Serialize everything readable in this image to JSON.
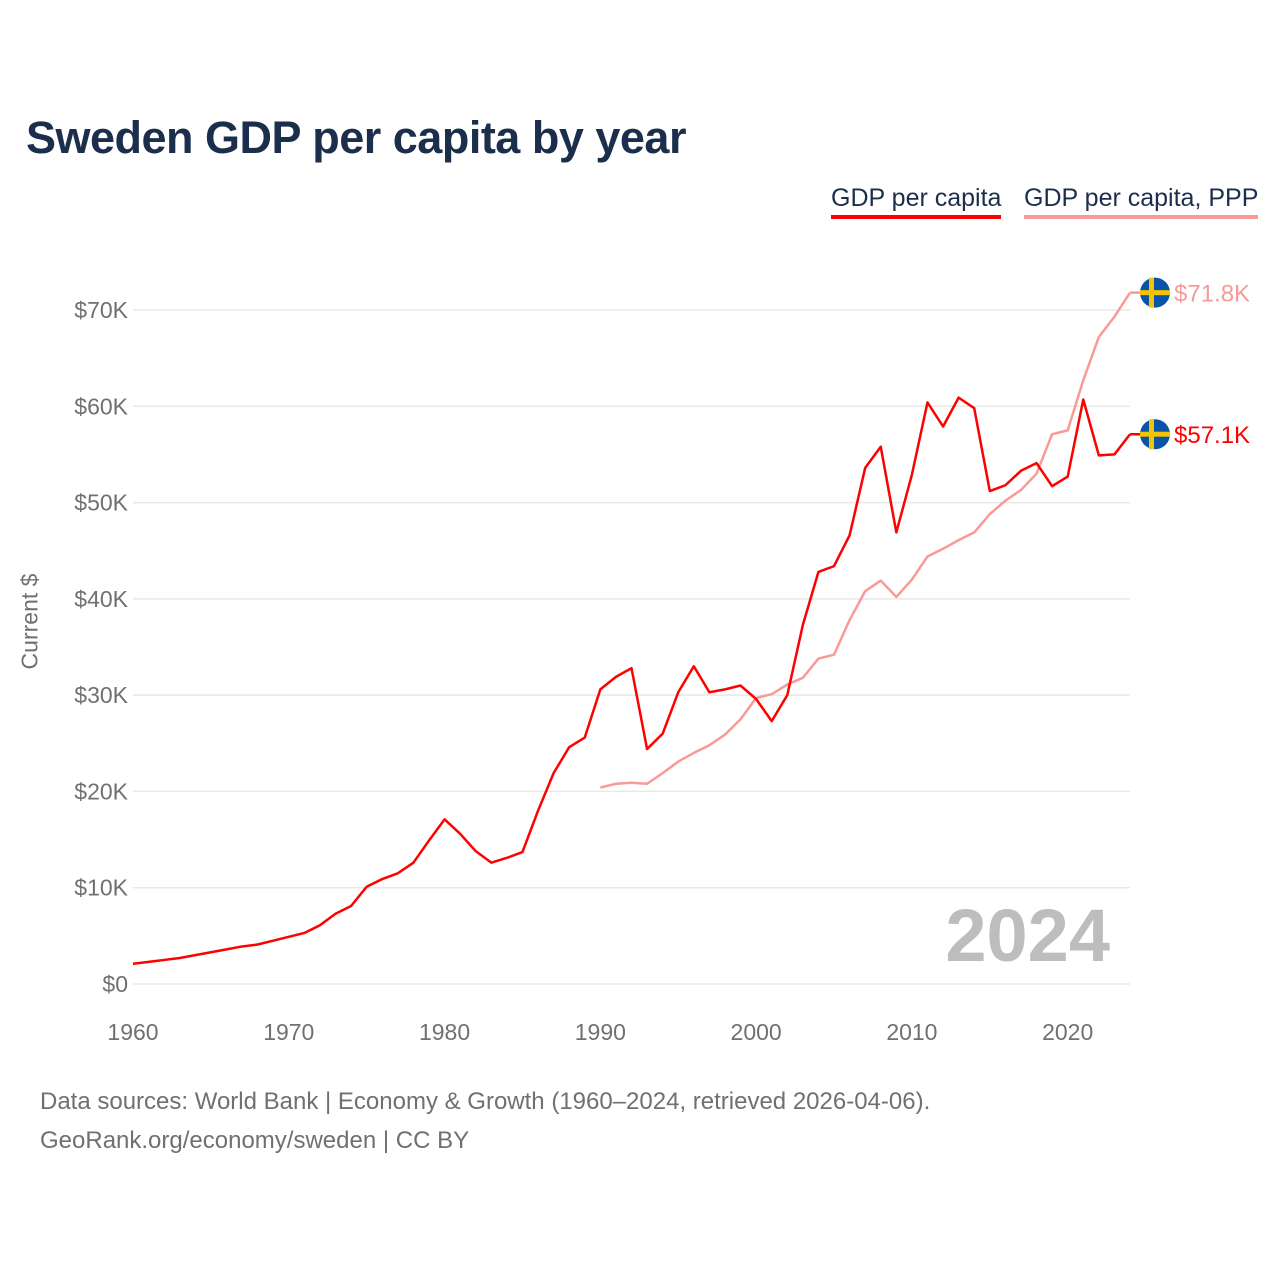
{
  "chart_data": {
    "type": "line",
    "title": "Sweden GDP per capita by year",
    "ylabel": "Current $",
    "xlabel": "",
    "xlim": [
      1960,
      2024
    ],
    "ylim": [
      0,
      70000
    ],
    "x_ticks": [
      "1960",
      "1970",
      "1980",
      "1990",
      "2000",
      "2010",
      "2020"
    ],
    "y_ticks": [
      "$0",
      "$10K",
      "$20K",
      "$30K",
      "$40K",
      "$50K",
      "$60K",
      "$70K"
    ],
    "grid": true,
    "legend_position": "top-right",
    "annotation_year": "2024",
    "series": [
      {
        "name": "GDP per capita",
        "color": "#ff0000",
        "start_year": 1960,
        "end_label": "$57.1K",
        "values": [
          2100,
          2300,
          2500,
          2700,
          3000,
          3300,
          3600,
          3900,
          4100,
          4500,
          4900,
          5300,
          6100,
          7300,
          8100,
          10100,
          10900,
          11500,
          12600,
          14900,
          17100,
          15600,
          13800,
          12600,
          13100,
          13700,
          18000,
          21900,
          24600,
          25600,
          30600,
          31900,
          32800,
          24400,
          26000,
          30300,
          33000,
          30300,
          30600,
          31000,
          29600,
          27300,
          30000,
          37300,
          42800,
          43400,
          46600,
          53600,
          55800,
          46900,
          52900,
          60400,
          57900,
          60900,
          59800,
          51200,
          51800,
          53300,
          54100,
          51700,
          52700,
          60700,
          54900,
          55000,
          57100
        ]
      },
      {
        "name": "GDP per capita, PPP",
        "color": "#f89a98",
        "start_year": 1990,
        "end_label": "$71.8K",
        "values": [
          20400,
          20800,
          20900,
          20800,
          21900,
          23100,
          24000,
          24800,
          25900,
          27500,
          29700,
          30100,
          31100,
          31800,
          33800,
          34200,
          37800,
          40800,
          41900,
          40200,
          42000,
          44400,
          45200,
          46100,
          46900,
          48800,
          50200,
          51300,
          53000,
          57100,
          57500,
          62700,
          67200,
          69300,
          71800
        ]
      }
    ]
  },
  "footer": {
    "line1": "Data sources: World Bank | Economy & Growth (1960–2024, retrieved 2026-04-06).",
    "line2": "GeoRank.org/economy/sweden | CC BY"
  },
  "flag_colors": {
    "blue": "#0a54a8",
    "yellow": "#f5c400"
  }
}
